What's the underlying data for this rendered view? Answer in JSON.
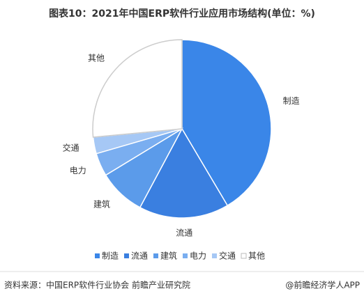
{
  "chart_data": {
    "type": "pie",
    "title": "图表10：2021年中国ERP软件行业应用市场结构(单位：%)",
    "categories": [
      "制造",
      "流通",
      "建筑",
      "电力",
      "交通",
      "其他"
    ],
    "values": [
      41.5,
      16.3,
      8.5,
      4.2,
      3.0,
      26.5
    ],
    "colors": [
      "#3a86e8",
      "#3a7fe0",
      "#5b9bea",
      "#7aaef0",
      "#a6c8f5",
      "#ffffff"
    ],
    "legend": "bottom"
  },
  "footer": {
    "source": "资料来源：中国ERP软件行业协会 前瞻产业研究院",
    "brand": "@前瞻经济学人APP"
  }
}
